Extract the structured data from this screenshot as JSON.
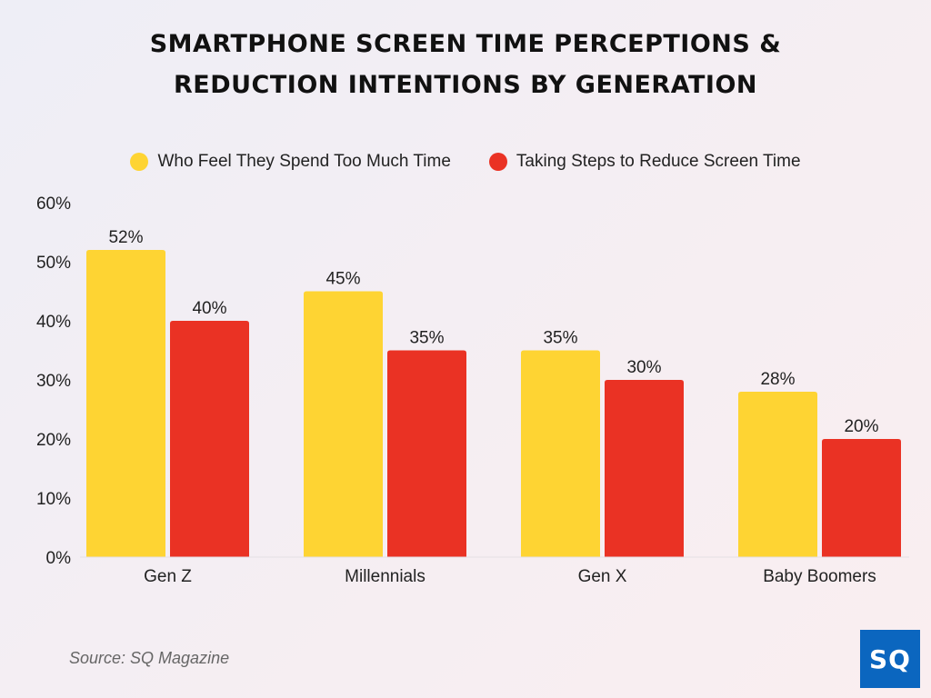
{
  "colors": {
    "series_1": "#fed433",
    "series_2": "#ea3224"
  },
  "chart_data": {
    "type": "bar",
    "title": "SMARTPHONE SCREEN TIME PERCEPTIONS & REDUCTION INTENTIONS BY GENERATION",
    "title_lines": [
      "SMARTPHONE SCREEN TIME PERCEPTIONS &",
      "REDUCTION INTENTIONS BY GENERATION"
    ],
    "categories": [
      "Gen Z",
      "Millennials",
      "Gen X",
      "Baby Boomers"
    ],
    "series": [
      {
        "name": "Who Feel They Spend Too Much Time",
        "values": [
          52,
          45,
          35,
          28
        ],
        "color": "#fed433"
      },
      {
        "name": "Taking Steps to Reduce Screen Time",
        "values": [
          40,
          35,
          30,
          20
        ],
        "color": "#ea3224"
      }
    ],
    "data_labels": [
      [
        "52%",
        "45%",
        "35%",
        "28%"
      ],
      [
        "40%",
        "35%",
        "30%",
        "20%"
      ]
    ],
    "y_ticks": [
      "0%",
      "10%",
      "20%",
      "30%",
      "40%",
      "50%",
      "60%"
    ],
    "ylim": [
      0,
      60
    ],
    "unit": "%",
    "xlabel": "",
    "ylabel": "",
    "grid": false,
    "legend_position": "top"
  },
  "footer": {
    "source": "Source: SQ Magazine",
    "logo_text": "SQ"
  }
}
